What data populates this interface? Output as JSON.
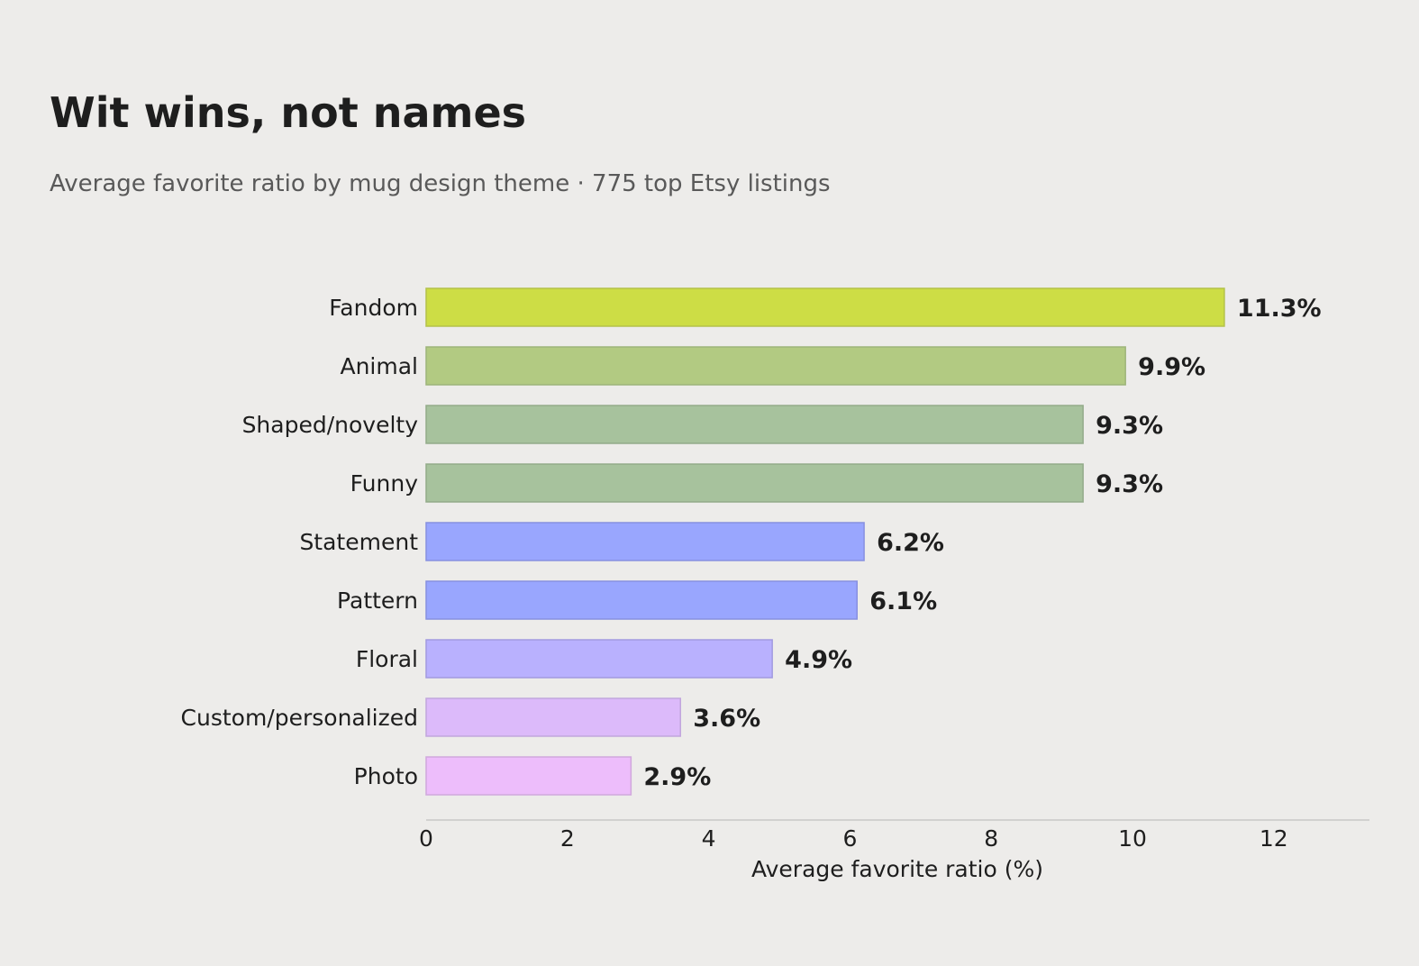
{
  "header": {
    "title": "Wit wins, not names",
    "subtitle": "Average favorite ratio by mug design theme · 775 top Etsy listings"
  },
  "chart_data": {
    "type": "bar",
    "orientation": "horizontal",
    "title": "Wit wins, not names",
    "subtitle": "Average favorite ratio by mug design theme · 775 top Etsy listings",
    "xlabel": "Average favorite ratio (%)",
    "ylabel": "",
    "xlim": [
      0,
      13.33
    ],
    "xticks": [
      0,
      2,
      4,
      6,
      8,
      10,
      12
    ],
    "grid": false,
    "legend": "none",
    "value_suffix": "%",
    "categories": [
      "Fandom",
      "Animal",
      "Shaped/novelty",
      "Funny",
      "Statement",
      "Pattern",
      "Floral",
      "Custom/personalized",
      "Photo"
    ],
    "values": [
      11.3,
      9.9,
      9.3,
      9.3,
      6.2,
      6.1,
      4.9,
      3.6,
      2.9
    ],
    "value_labels": [
      "11.3%",
      "9.9%",
      "9.3%",
      "9.3%",
      "6.2%",
      "6.1%",
      "4.9%",
      "3.6%",
      "2.9%"
    ],
    "colors": [
      "#cddd45",
      "#b2ca82",
      "#a7c29d",
      "#a7c29d",
      "#99a6fe",
      "#99a6fe",
      "#b9b1fe",
      "#dcbafa",
      "#edbdfb"
    ],
    "border_colors": [
      "#b3c24a",
      "#9db47a",
      "#93ab8a",
      "#93ab8a",
      "#8790e0",
      "#8790e0",
      "#a29ae0",
      "#c2a6dc",
      "#d0a8dc"
    ],
    "axis_color": "#c8c8c8",
    "background": "#edecea"
  }
}
